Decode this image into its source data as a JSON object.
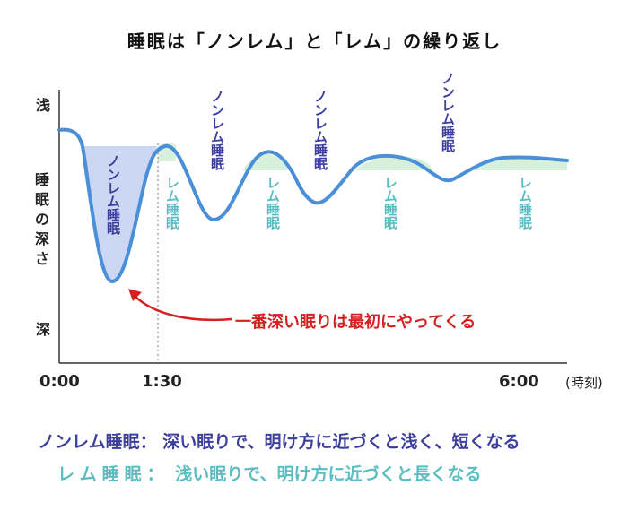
{
  "title": "睡眠は「ノンレム」と「レム」の繰り返し",
  "y_axis": {
    "top": "浅",
    "middle": "睡眠の深さ",
    "bottom": "深"
  },
  "x_axis": {
    "ticks": [
      "0:00",
      "1:30",
      "6:00"
    ],
    "unit": "(時刻)"
  },
  "stage_labels": {
    "nonrem_deep": "ノンレム睡眠",
    "rem_1": "レム睡眠",
    "nonrem_2": "ノンレム睡眠",
    "rem_2": "レム睡眠",
    "nonrem_3": "ノンレム睡眠",
    "rem_3": "レム睡眠",
    "nonrem_4": "ノンレム睡眠",
    "rem_4": "レム睡眠"
  },
  "callout": "一番深い眠りは最初にやってくる",
  "legend": {
    "nonrem_key": "ノンレム睡眠：",
    "nonrem_desc": "深い眠りで、明け方に近づくと浅く、短くなる",
    "rem_key": "レム睡眠：",
    "rem_desc": "浅い眠りで、明け方に近づくと長くなる"
  },
  "colors": {
    "nonrem": "#3d3f9e",
    "rem": "#5cbcc0",
    "curve": "#4a8fd8",
    "deep_fill": "#c9d6f2",
    "rem_fill": "#d6f0dc",
    "callout": "#d42020"
  }
}
